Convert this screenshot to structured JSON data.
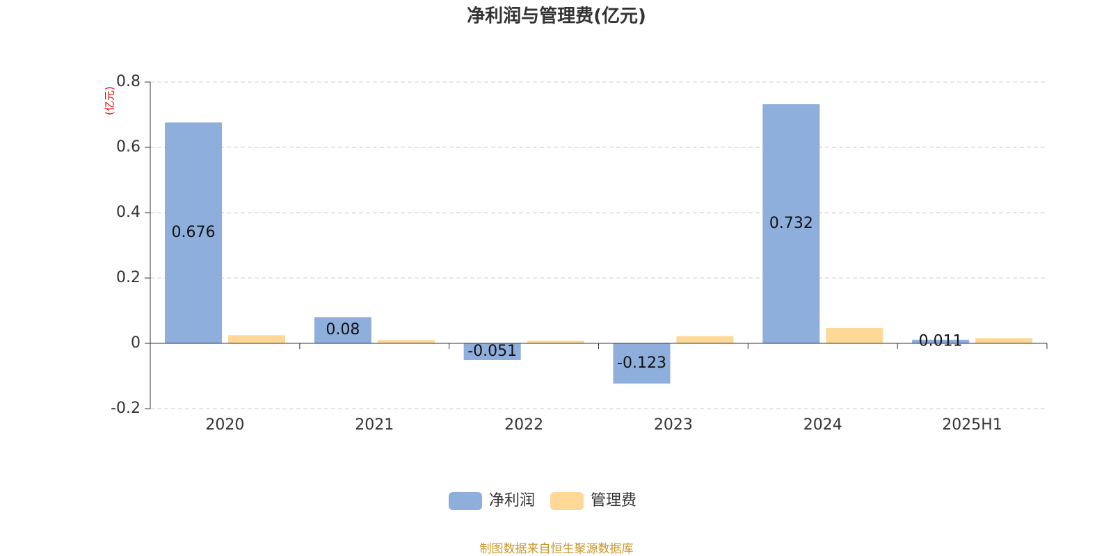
{
  "chart_data": {
    "type": "bar",
    "title": "净利润与管理费(亿元)",
    "y_label": "(亿元)",
    "categories": [
      "2020",
      "2021",
      "2022",
      "2023",
      "2024",
      "2025H1"
    ],
    "series": [
      {
        "name": "净利润",
        "color": "#8eaedb",
        "values": [
          0.676,
          0.08,
          -0.051,
          -0.123,
          0.732,
          0.011
        ],
        "data_labels": true
      },
      {
        "name": "管理费",
        "color": "#fdd897",
        "values": [
          0.025,
          0.01,
          0.008,
          0.022,
          0.047,
          0.016
        ],
        "data_labels": false
      }
    ],
    "ylim": [
      -0.2,
      0.8
    ],
    "yticks": [
      -0.2,
      0,
      0.2,
      0.4,
      0.6,
      0.8
    ],
    "grid": true,
    "legend": "bottom",
    "source": "制图数据来自恒生聚源数据库"
  }
}
